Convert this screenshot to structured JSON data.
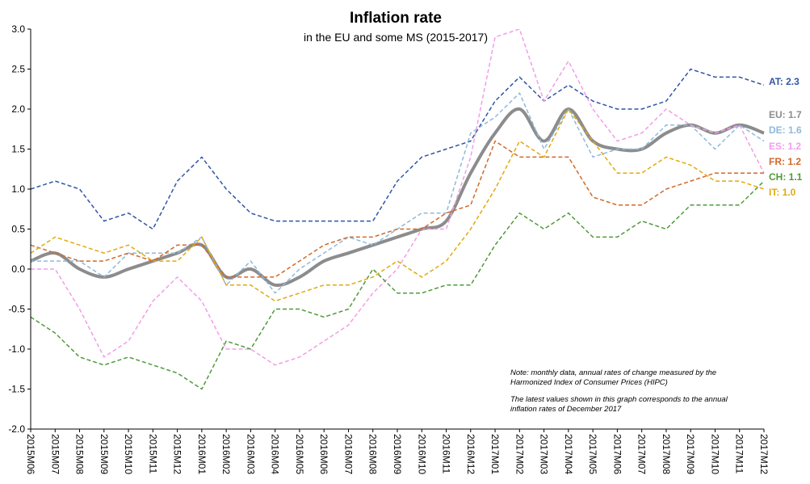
{
  "chart_data": {
    "type": "line",
    "title": "Inflation rate",
    "subtitle": "in the EU and some MS (2015-2017)",
    "notes": [
      "Note: monthly data, annual rates of change measured by the",
      "Harmonized Index of Consumer Prices (HIPC)",
      "The latest values shown in this graph corresponds to the annual",
      "inflation rates of December 2017"
    ],
    "categories": [
      "2015M06",
      "2015M07",
      "2015M08",
      "2015M09",
      "2015M10",
      "2015M11",
      "2015M12",
      "2016M01",
      "2016M02",
      "2016M03",
      "2016M04",
      "2016M05",
      "2016M06",
      "2016M07",
      "2016M08",
      "2016M09",
      "2016M10",
      "2016M11",
      "2016M12",
      "2017M01",
      "2017M02",
      "2017M03",
      "2017M04",
      "2017M05",
      "2017M06",
      "2017M07",
      "2017M08",
      "2017M09",
      "2017M10",
      "2017M11",
      "2017M12"
    ],
    "ylim": [
      -2,
      3
    ],
    "yticks": [
      {
        "value": -2,
        "label": "-2.0"
      },
      {
        "value": -1.5,
        "label": "-1.5"
      },
      {
        "value": -1,
        "label": "-1.0"
      },
      {
        "value": -0.5,
        "label": "-0.5"
      },
      {
        "value": 0,
        "label": "0.0"
      },
      {
        "value": 0.5,
        "label": "0.5"
      },
      {
        "value": 1,
        "label": "1.0"
      },
      {
        "value": 1.5,
        "label": "1.5"
      },
      {
        "value": 2,
        "label": "2.0"
      },
      {
        "value": 2.5,
        "label": "2.5"
      },
      {
        "value": 3,
        "label": "3.0"
      }
    ],
    "grid": false,
    "series": [
      {
        "name": "AT",
        "end_label": "AT: 2.3",
        "color": "#2f55a4",
        "dashed": true,
        "width": 1.5,
        "values": [
          1.0,
          1.1,
          1.0,
          0.6,
          0.7,
          0.5,
          1.1,
          1.4,
          1.0,
          0.7,
          0.6,
          0.6,
          0.6,
          0.6,
          0.6,
          1.1,
          1.4,
          1.5,
          1.6,
          2.1,
          2.4,
          2.1,
          2.3,
          2.1,
          2.0,
          2.0,
          2.1,
          2.5,
          2.4,
          2.4,
          2.3
        ]
      },
      {
        "name": "EU",
        "end_label": "EU: 1.7",
        "color": "#8c8c8c",
        "dashed": false,
        "smooth": true,
        "width": 4,
        "values": [
          0.1,
          0.2,
          0.0,
          -0.1,
          0.0,
          0.1,
          0.2,
          0.3,
          -0.1,
          0.0,
          -0.2,
          -0.1,
          0.1,
          0.2,
          0.3,
          0.4,
          0.5,
          0.6,
          1.2,
          1.7,
          2.0,
          1.6,
          2.0,
          1.6,
          1.5,
          1.5,
          1.7,
          1.8,
          1.7,
          1.8,
          1.7
        ]
      },
      {
        "name": "DE",
        "end_label": "DE: 1.6",
        "color": "#8fb9dc",
        "dashed": true,
        "width": 1.5,
        "values": [
          0.1,
          0.1,
          0.1,
          -0.1,
          0.2,
          0.2,
          0.2,
          0.4,
          -0.2,
          0.1,
          -0.3,
          0.0,
          0.2,
          0.4,
          0.3,
          0.5,
          0.7,
          0.7,
          1.7,
          1.9,
          2.2,
          1.5,
          2.0,
          1.4,
          1.5,
          1.5,
          1.8,
          1.8,
          1.5,
          1.8,
          1.6
        ]
      },
      {
        "name": "ES",
        "end_label": "ES: 1.2",
        "color": "#f09ee8",
        "dashed": true,
        "width": 1.5,
        "values": [
          0.0,
          0.0,
          -0.5,
          -1.1,
          -0.9,
          -0.4,
          -0.1,
          -0.4,
          -1.0,
          -1.0,
          -1.2,
          -1.1,
          -0.9,
          -0.7,
          -0.3,
          0.0,
          0.5,
          0.5,
          1.4,
          2.9,
          3.0,
          2.1,
          2.6,
          2.0,
          1.6,
          1.7,
          2.0,
          1.8,
          1.7,
          1.8,
          1.2
        ]
      },
      {
        "name": "FR",
        "end_label": "FR: 1.2",
        "color": "#d0692a",
        "dashed": true,
        "width": 1.5,
        "values": [
          0.3,
          0.2,
          0.1,
          0.1,
          0.2,
          0.1,
          0.3,
          0.3,
          -0.1,
          -0.1,
          -0.1,
          0.1,
          0.3,
          0.4,
          0.4,
          0.5,
          0.5,
          0.7,
          0.8,
          1.6,
          1.4,
          1.4,
          1.4,
          0.9,
          0.8,
          0.8,
          1.0,
          1.1,
          1.2,
          1.2,
          1.2
        ]
      },
      {
        "name": "CH",
        "end_label": "CH: 1.1",
        "color": "#4f9a3a",
        "dashed": true,
        "width": 1.5,
        "values": [
          -0.6,
          -0.8,
          -1.1,
          -1.2,
          -1.1,
          -1.2,
          -1.3,
          -1.5,
          -0.9,
          -1.0,
          -0.5,
          -0.5,
          -0.6,
          -0.5,
          0.0,
          -0.3,
          -0.3,
          -0.2,
          -0.2,
          0.3,
          0.7,
          0.5,
          0.7,
          0.4,
          0.4,
          0.6,
          0.5,
          0.8,
          0.8,
          0.8,
          1.1
        ]
      },
      {
        "name": "IT",
        "end_label": "IT: 1.0",
        "color": "#e0aa10",
        "dashed": true,
        "width": 1.5,
        "values": [
          0.2,
          0.4,
          0.3,
          0.2,
          0.3,
          0.1,
          0.1,
          0.4,
          -0.2,
          -0.2,
          -0.4,
          -0.3,
          -0.2,
          -0.2,
          -0.1,
          0.1,
          -0.1,
          0.1,
          0.5,
          1.0,
          1.6,
          1.4,
          2.0,
          1.6,
          1.2,
          1.2,
          1.4,
          1.3,
          1.1,
          1.1,
          1.0
        ]
      }
    ]
  }
}
